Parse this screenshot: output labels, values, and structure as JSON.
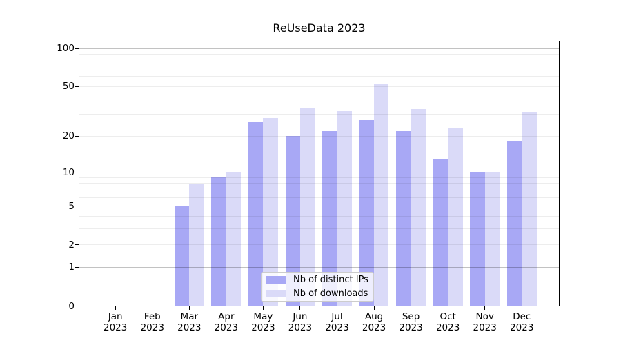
{
  "chart_data": {
    "type": "bar",
    "title": "ReUseData 2023",
    "categories": [
      "Jan 2023",
      "Feb 2023",
      "Mar 2023",
      "Apr 2023",
      "May 2023",
      "Jun 2023",
      "Jul 2023",
      "Aug 2023",
      "Sep 2023",
      "Oct 2023",
      "Nov 2023",
      "Dec 2023"
    ],
    "series": [
      {
        "name": "Nb of distinct IPs",
        "color": "#a8a8f5",
        "values": [
          0,
          0,
          5,
          9,
          26,
          20,
          22,
          27,
          22,
          13,
          10,
          18
        ]
      },
      {
        "name": "Nb of downloads",
        "color": "#dadaf8",
        "values": [
          0,
          0,
          8,
          10,
          28,
          34,
          32,
          52,
          33,
          23,
          10,
          31
        ]
      }
    ],
    "xlabel": "",
    "ylabel": "",
    "yscale": "pseudo-log: position proportional to log10(value+1)",
    "y_tick_values": [
      0,
      1,
      2,
      5,
      10,
      20,
      50,
      100
    ],
    "ylim": [
      0,
      115
    ],
    "grid": {
      "major_at": [
        1,
        10,
        100
      ],
      "minor_at": [
        2,
        3,
        4,
        5,
        6,
        7,
        8,
        9,
        20,
        30,
        40,
        50,
        60,
        70,
        80,
        90
      ],
      "drawn_above_bars": true
    },
    "legend_position": "lower center, inside plot",
    "axis_color": "#000000",
    "background_color": "#ffffff"
  }
}
